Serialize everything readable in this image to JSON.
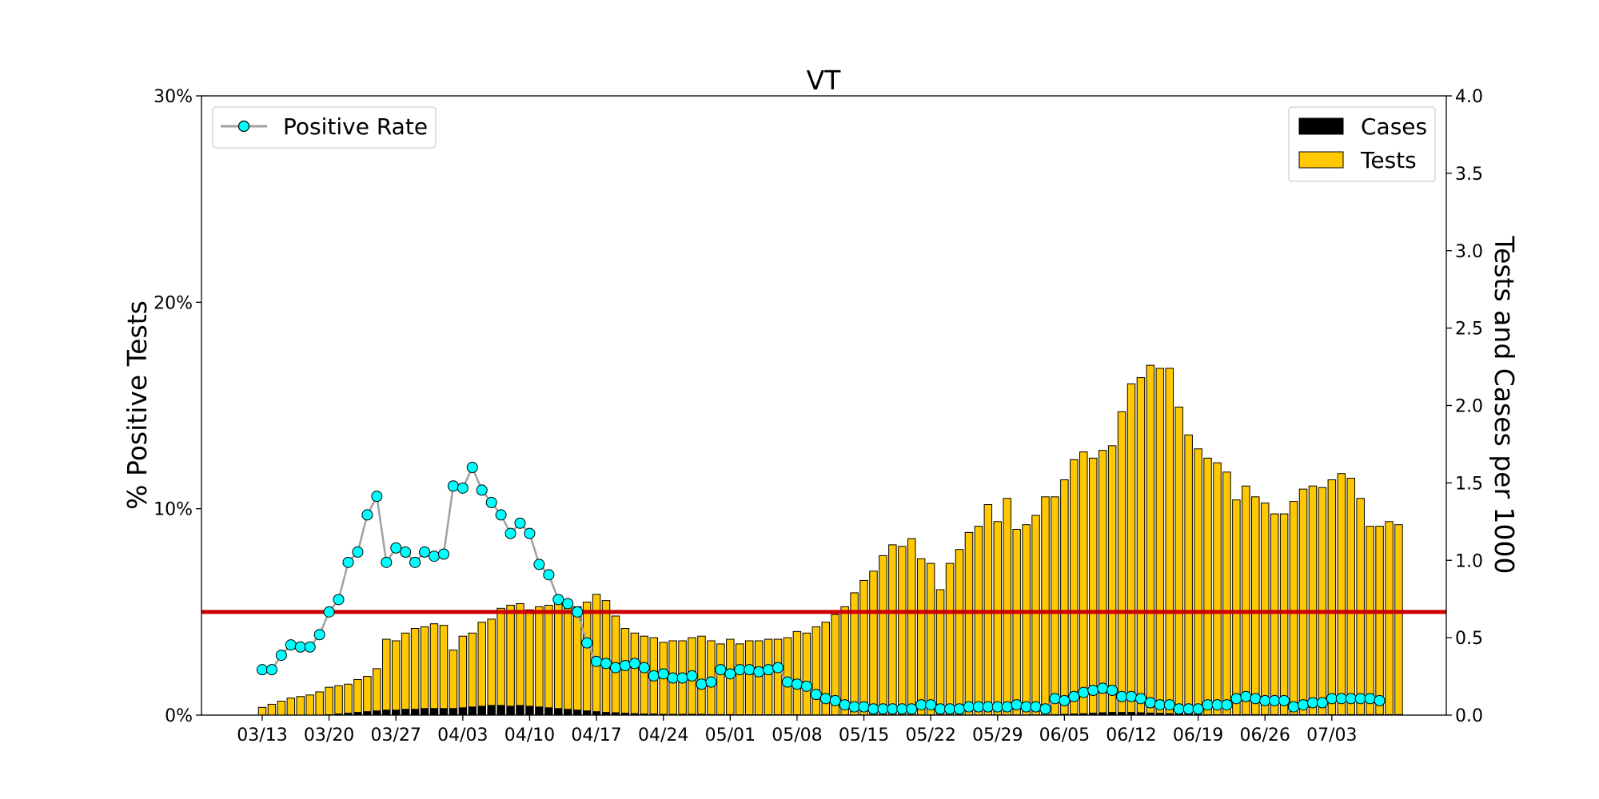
{
  "chart_data": {
    "type": "bar",
    "title": "VT",
    "ylabel_left": "% Positive Tests",
    "ylabel_right": "Tests and Cases per 1000",
    "ylim_left": [
      0,
      30
    ],
    "ylim_right": [
      0,
      4.0
    ],
    "left_tick_labels": [
      "0%",
      "10%",
      "20%",
      "30%"
    ],
    "left_tick_values": [
      0,
      10,
      20,
      30
    ],
    "right_tick_labels": [
      "0.0",
      "0.5",
      "1.0",
      "1.5",
      "2.0",
      "2.5",
      "3.0",
      "3.5",
      "4.0"
    ],
    "right_tick_values": [
      0,
      0.5,
      1.0,
      1.5,
      2.0,
      2.5,
      3.0,
      3.5,
      4.0
    ],
    "x_tick_labels": [
      "03/13",
      "03/20",
      "03/27",
      "04/03",
      "04/10",
      "04/17",
      "04/24",
      "05/01",
      "05/08",
      "05/15",
      "05/22",
      "05/29",
      "06/05",
      "06/12",
      "06/19",
      "06/26",
      "07/03"
    ],
    "x_tick_index": [
      0,
      7,
      14,
      21,
      28,
      35,
      42,
      49,
      56,
      63,
      70,
      77,
      84,
      91,
      98,
      105,
      112
    ],
    "x_start": "03/13",
    "threshold_percent": 5,
    "legend_left": {
      "label": "Positive Rate",
      "position": "top-left"
    },
    "legend_right": {
      "labels": [
        "Cases",
        "Tests"
      ],
      "position": "top-right"
    },
    "colors": {
      "tests": "#FFC800",
      "cases": "#000000",
      "rate_marker": "#00FFFF",
      "rate_line": "#A0A0A0",
      "threshold": "#CC0000"
    },
    "grid": false,
    "series": [
      {
        "name": "Tests",
        "axis": "right",
        "values": [
          0.05,
          0.07,
          0.09,
          0.11,
          0.12,
          0.13,
          0.15,
          0.18,
          0.19,
          0.2,
          0.23,
          0.25,
          0.3,
          0.49,
          0.48,
          0.53,
          0.56,
          0.57,
          0.59,
          0.58,
          0.42,
          0.51,
          0.53,
          0.6,
          0.62,
          0.69,
          0.71,
          0.72,
          0.68,
          0.7,
          0.71,
          0.72,
          0.73,
          0.7,
          0.73,
          0.78,
          0.74,
          0.64,
          0.56,
          0.53,
          0.51,
          0.5,
          0.47,
          0.48,
          0.48,
          0.5,
          0.51,
          0.48,
          0.46,
          0.49,
          0.46,
          0.48,
          0.48,
          0.49,
          0.49,
          0.5,
          0.54,
          0.53,
          0.57,
          0.6,
          0.65,
          0.7,
          0.79,
          0.87,
          0.93,
          1.03,
          1.1,
          1.09,
          1.14,
          1.01,
          0.98,
          0.81,
          0.98,
          1.07,
          1.18,
          1.22,
          1.36,
          1.25,
          1.4,
          1.2,
          1.23,
          1.29,
          1.41,
          1.41,
          1.52,
          1.65,
          1.7,
          1.66,
          1.71,
          1.74,
          1.96,
          2.14,
          2.18,
          2.26,
          2.24,
          2.24,
          1.99,
          1.81,
          1.72,
          1.66,
          1.63,
          1.57,
          1.39,
          1.48,
          1.41,
          1.37,
          1.3,
          1.3,
          1.38,
          1.46,
          1.48,
          1.47,
          1.52,
          1.56,
          1.53,
          1.4,
          1.22,
          1.22,
          1.25,
          1.23
        ]
      },
      {
        "name": "Cases",
        "axis": "right",
        "values": [
          0,
          0,
          0,
          0,
          0,
          0,
          0,
          0.005,
          0.01,
          0.015,
          0.02,
          0.025,
          0.03,
          0.035,
          0.035,
          0.04,
          0.04,
          0.045,
          0.045,
          0.045,
          0.045,
          0.05,
          0.055,
          0.06,
          0.065,
          0.065,
          0.06,
          0.065,
          0.06,
          0.055,
          0.05,
          0.045,
          0.04,
          0.035,
          0.03,
          0.025,
          0.02,
          0.018,
          0.015,
          0.012,
          0.01,
          0.01,
          0.008,
          0.008,
          0.008,
          0.008,
          0.008,
          0.006,
          0.006,
          0.006,
          0.005,
          0.005,
          0.005,
          0.005,
          0.005,
          0.005,
          0.005,
          0.004,
          0.004,
          0.004,
          0.004,
          0.004,
          0.004,
          0.004,
          0.004,
          0.004,
          0.004,
          0.004,
          0.004,
          0.004,
          0.004,
          0.004,
          0.004,
          0.004,
          0.004,
          0.004,
          0.004,
          0.004,
          0.004,
          0.004,
          0.004,
          0.004,
          0.004,
          0.006,
          0.008,
          0.01,
          0.012,
          0.015,
          0.018,
          0.02,
          0.02,
          0.02,
          0.018,
          0.016,
          0.014,
          0.012,
          0.01,
          0.008,
          0.006,
          0.005,
          0.005,
          0.005,
          0.005,
          0.006,
          0.006,
          0.006,
          0.006,
          0.006,
          0.006,
          0.005,
          0.005,
          0.005,
          0.005,
          0.005,
          0.006,
          0.006,
          0.006,
          0.006,
          0.006,
          0.006
        ]
      },
      {
        "name": "Positive Rate",
        "axis": "left",
        "values": [
          2.2,
          2.2,
          2.9,
          3.4,
          3.3,
          3.3,
          3.9,
          5.0,
          5.6,
          7.4,
          7.9,
          9.7,
          10.6,
          7.4,
          8.1,
          7.9,
          7.4,
          7.9,
          7.7,
          7.8,
          11.1,
          11.0,
          12.0,
          10.9,
          10.3,
          9.7,
          8.8,
          9.3,
          8.8,
          7.3,
          6.8,
          5.6,
          5.4,
          5.0,
          3.5,
          2.6,
          2.5,
          2.3,
          2.4,
          2.5,
          2.3,
          1.9,
          2.0,
          1.8,
          1.8,
          1.9,
          1.5,
          1.6,
          2.2,
          2.0,
          2.2,
          2.2,
          2.1,
          2.2,
          2.3,
          1.6,
          1.5,
          1.4,
          1.0,
          0.8,
          0.7,
          0.5,
          0.4,
          0.4,
          0.3,
          0.3,
          0.3,
          0.3,
          0.3,
          0.5,
          0.5,
          0.3,
          0.3,
          0.3,
          0.4,
          0.4,
          0.4,
          0.4,
          0.4,
          0.5,
          0.4,
          0.4,
          0.3,
          0.8,
          0.7,
          0.9,
          1.1,
          1.2,
          1.3,
          1.2,
          0.9,
          0.9,
          0.8,
          0.6,
          0.5,
          0.5,
          0.3,
          0.3,
          0.3,
          0.5,
          0.5,
          0.5,
          0.8,
          0.9,
          0.8,
          0.7,
          0.7,
          0.7,
          0.4,
          0.5,
          0.6,
          0.6,
          0.8,
          0.8,
          0.8,
          0.8,
          0.8,
          0.7
        ]
      }
    ]
  }
}
